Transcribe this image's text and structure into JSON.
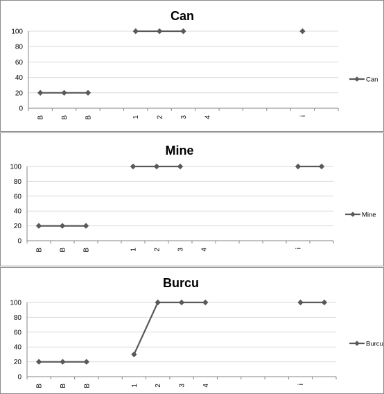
{
  "colors": {
    "series": "#595959",
    "grid": "#d9d9d9",
    "axis": "#868686",
    "border": "#8a8a8a"
  },
  "chart_data": [
    {
      "type": "line",
      "title": "Can",
      "categories": [
        "B",
        "B",
        "B",
        "",
        "1",
        "2",
        "3",
        "4",
        "",
        "",
        "",
        "i",
        ""
      ],
      "series": [
        {
          "name": "Can",
          "values": [
            20,
            20,
            20,
            null,
            100,
            100,
            100,
            null,
            null,
            null,
            null,
            100,
            null
          ]
        }
      ],
      "yticks": [
        "0",
        "20",
        "40",
        "60",
        "80",
        "100"
      ],
      "ylim": [
        0,
        100
      ],
      "grid": true,
      "legend": "right"
    },
    {
      "type": "line",
      "title": "Mine",
      "categories": [
        "B",
        "B",
        "B",
        "",
        "1",
        "2",
        "3",
        "4",
        "",
        "",
        "",
        "i",
        ""
      ],
      "series": [
        {
          "name": "Mine",
          "values": [
            20,
            20,
            20,
            null,
            100,
            100,
            100,
            null,
            null,
            null,
            null,
            100,
            100
          ]
        }
      ],
      "yticks": [
        "0",
        "20",
        "40",
        "60",
        "80",
        "100"
      ],
      "ylim": [
        0,
        100
      ],
      "grid": true,
      "legend": "right"
    },
    {
      "type": "line",
      "title": "Burcu",
      "categories": [
        "B",
        "B",
        "B",
        "",
        "1",
        "2",
        "3",
        "4",
        "",
        "",
        "",
        "i",
        ""
      ],
      "series": [
        {
          "name": "Burcu",
          "values": [
            20,
            20,
            20,
            null,
            30,
            100,
            100,
            100,
            null,
            null,
            null,
            100,
            100
          ]
        }
      ],
      "yticks": [
        "0",
        "20",
        "40",
        "60",
        "80",
        "100"
      ],
      "ylim": [
        0,
        100
      ],
      "grid": true,
      "legend": "right"
    }
  ]
}
